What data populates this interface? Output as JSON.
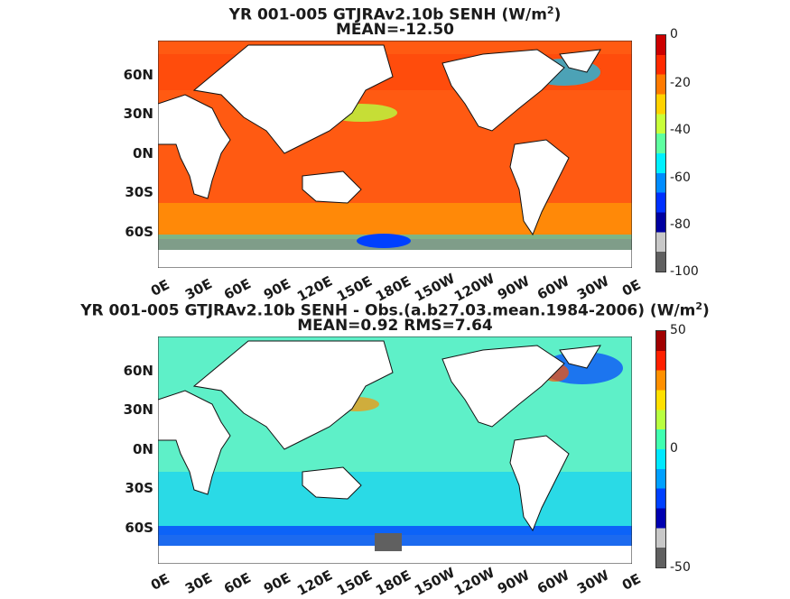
{
  "panels": [
    {
      "title_main": "YR 001-005 GTJRAv2.10b  SENH (W/m",
      "title_sup": "2",
      "title_end": ")",
      "subtitle": "MEAN=-12.50",
      "lat_labels": [
        "60N",
        "30N",
        "0N",
        "30S",
        "60S"
      ],
      "lon_labels": [
        "0E",
        "30E",
        "60E",
        "90E",
        "120E",
        "150E",
        "180E",
        "150W",
        "120W",
        "90W",
        "60W",
        "30W",
        "0E"
      ],
      "colorbar": {
        "ticks": [
          "0",
          "-20",
          "-40",
          "-60",
          "-80",
          "-100"
        ],
        "colors": [
          "#cc0000",
          "#ff2a00",
          "#ff7a00",
          "#ffd200",
          "#c8ff3a",
          "#5effa0",
          "#00f0ff",
          "#008cff",
          "#0030ff",
          "#0000a0",
          "#c8c8c8",
          "#606060"
        ]
      },
      "ocean_color": "#ff5a12",
      "land_color": "#ffffff"
    },
    {
      "title_main": "YR 001-005 GTJRAv2.10b SENH - Obs.(a.b27.03.mean.1984-2006) (W/m",
      "title_sup": "2",
      "title_end": ")",
      "subtitle": "MEAN=0.92 RMS=7.64",
      "lat_labels": [
        "60N",
        "30N",
        "0N",
        "30S",
        "60S"
      ],
      "lon_labels": [
        "0E",
        "30E",
        "60E",
        "90E",
        "120E",
        "150E",
        "180E",
        "150W",
        "120W",
        "90W",
        "60W",
        "30W",
        "0E"
      ],
      "colorbar": {
        "ticks": [
          "50",
          "0",
          "-50"
        ],
        "colors": [
          "#a00000",
          "#ff2000",
          "#ff9000",
          "#ffe000",
          "#b8ff40",
          "#40ffb0",
          "#00e8ff",
          "#00a0ff",
          "#0040ff",
          "#0000b0",
          "#c8c8c8",
          "#606060"
        ]
      },
      "ocean_color": "#5ef0c8",
      "land_color": "#ffffff"
    }
  ]
}
